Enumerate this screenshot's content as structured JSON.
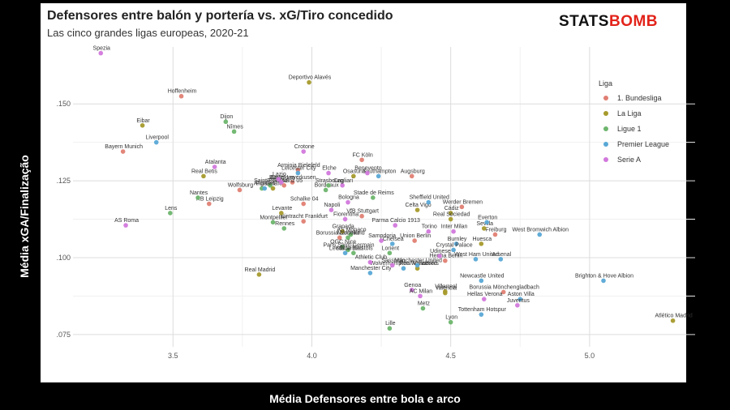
{
  "title": "Defensores entre balón y portería vs. xG/Tiro concedido",
  "subtitle": "Las cinco grandes ligas europeas, 2020-21",
  "logo": {
    "part1": "STATS",
    "part2": "BOMB"
  },
  "chart_data": {
    "type": "scatter",
    "xlabel": "Média Defensores entre bola e arco",
    "ylabel": "Média xGA/Finalização",
    "xlim": [
      3.14,
      5.38
    ],
    "ylim": [
      0.071,
      0.1685
    ],
    "xticks": [
      3.5,
      4.0,
      4.5,
      5.0
    ],
    "xtick_labels": [
      "3.5",
      "4.0",
      "4.5",
      "5.0"
    ],
    "yticks": [
      0.075,
      0.1,
      0.125,
      0.15
    ],
    "ytick_labels": [
      ".075",
      ".100",
      ".125",
      ".150"
    ],
    "grid": true,
    "legend": {
      "title": "Liga",
      "position": "right"
    },
    "series": [
      {
        "name": "1. Bundesliga",
        "color": "#e07f73",
        "points": [
          {
            "label": "Bayern Munich",
            "x": 3.32,
            "y": 0.1345
          },
          {
            "label": "Hoffenheim",
            "x": 3.53,
            "y": 0.1525
          },
          {
            "label": "Arminia Bielefeld",
            "x": 3.95,
            "y": 0.1285
          },
          {
            "label": "Wolfsburg",
            "x": 3.74,
            "y": 0.122
          },
          {
            "label": "RB Leipzig",
            "x": 3.63,
            "y": 0.1175
          },
          {
            "label": "Bayer Leverkusen",
            "x": 3.93,
            "y": 0.1245
          },
          {
            "label": "Schalke 04",
            "x": 3.97,
            "y": 0.1175
          },
          {
            "label": "FC Köln",
            "x": 4.18,
            "y": 0.1318
          },
          {
            "label": "Augsburg",
            "x": 4.36,
            "y": 0.1265
          },
          {
            "label": "VfB Stuttgart",
            "x": 4.18,
            "y": 0.1135
          },
          {
            "label": "Borussia Dortmund",
            "x": 4.1,
            "y": 0.1065
          },
          {
            "label": "Werder Bremen",
            "x": 4.54,
            "y": 0.1165
          },
          {
            "label": "Union Berlin",
            "x": 4.37,
            "y": 0.1055
          },
          {
            "label": "Freiburg",
            "x": 4.66,
            "y": 0.1075
          },
          {
            "label": "Hertha Berlin",
            "x": 4.48,
            "y": 0.099
          },
          {
            "label": "Borussia Mönchengladbach",
            "x": 4.69,
            "y": 0.0888
          },
          {
            "label": "Eintracht Frankfurt",
            "x": 3.97,
            "y": 0.1118
          },
          {
            "label": "FSV Mainz 05",
            "x": 3.9,
            "y": 0.1235
          }
        ]
      },
      {
        "name": "La Liga",
        "color": "#a69a2c",
        "points": [
          {
            "label": "Deportivo Alavés",
            "x": 3.99,
            "y": 0.157
          },
          {
            "label": "Eibar",
            "x": 3.39,
            "y": 0.143
          },
          {
            "label": "Real Betis",
            "x": 3.61,
            "y": 0.1265
          },
          {
            "label": "Osasuna",
            "x": 4.15,
            "y": 0.1265
          },
          {
            "label": "Levante",
            "x": 3.89,
            "y": 0.1145
          },
          {
            "label": "Celta Vigo",
            "x": 4.38,
            "y": 0.1155
          },
          {
            "label": "Cádiz",
            "x": 4.5,
            "y": 0.1145
          },
          {
            "label": "Real Sociedad",
            "x": 4.5,
            "y": 0.1125
          },
          {
            "label": "Granada",
            "x": 4.11,
            "y": 0.1085
          },
          {
            "label": "Huesca",
            "x": 4.61,
            "y": 0.1045
          },
          {
            "label": "Sevilla",
            "x": 4.62,
            "y": 0.1095
          },
          {
            "label": "Real Madrid",
            "x": 3.81,
            "y": 0.0945
          },
          {
            "label": "Villarreal",
            "x": 4.48,
            "y": 0.089
          },
          {
            "label": "Valencia",
            "x": 4.48,
            "y": 0.0885
          },
          {
            "label": "Atlético Madrid",
            "x": 5.3,
            "y": 0.0795
          },
          {
            "label": "Getafe",
            "x": 3.86,
            "y": 0.1225
          },
          {
            "label": "Real Valladolid",
            "x": 4.38,
            "y": 0.0965
          }
        ]
      },
      {
        "name": "Ligue 1",
        "color": "#6db56d",
        "points": [
          {
            "label": "Dijon",
            "x": 3.69,
            "y": 0.1442
          },
          {
            "label": "Nîmes",
            "x": 3.72,
            "y": 0.141
          },
          {
            "label": "Lens",
            "x": 3.49,
            "y": 0.1145
          },
          {
            "label": "Nantes",
            "x": 3.59,
            "y": 0.1195
          },
          {
            "label": "Angers",
            "x": 3.82,
            "y": 0.1225
          },
          {
            "label": "Saint-Étienne",
            "x": 3.85,
            "y": 0.1235
          },
          {
            "label": "Montpellier",
            "x": 3.86,
            "y": 0.1115
          },
          {
            "label": "Rennes",
            "x": 3.9,
            "y": 0.1095
          },
          {
            "label": "Bordeaux",
            "x": 4.05,
            "y": 0.122
          },
          {
            "label": "Strasbourg",
            "x": 4.06,
            "y": 0.1235
          },
          {
            "label": "Stade de Reims",
            "x": 4.22,
            "y": 0.1195
          },
          {
            "label": "AS Monaco",
            "x": 4.14,
            "y": 0.1075
          },
          {
            "label": "Marseille",
            "x": 4.13,
            "y": 0.1065
          },
          {
            "label": "OGC Nice",
            "x": 4.11,
            "y": 0.1035
          },
          {
            "label": "Paris Saint-Germain",
            "x": 4.13,
            "y": 0.1025
          },
          {
            "label": "Lorient",
            "x": 4.28,
            "y": 0.1015
          },
          {
            "label": "Stade Brestois",
            "x": 4.15,
            "y": 0.1015
          },
          {
            "label": "Lille",
            "x": 4.28,
            "y": 0.077
          },
          {
            "label": "Metz",
            "x": 4.4,
            "y": 0.0835
          },
          {
            "label": "Lyon",
            "x": 4.5,
            "y": 0.079
          }
        ]
      },
      {
        "name": "Premier League",
        "color": "#58a8d6",
        "points": [
          {
            "label": "Liverpool",
            "x": 3.44,
            "y": 0.1375
          },
          {
            "label": "Leicester City",
            "x": 3.95,
            "y": 0.1275
          },
          {
            "label": "Fulham",
            "x": 3.83,
            "y": 0.1225
          },
          {
            "label": "Southampton",
            "x": 4.24,
            "y": 0.1265
          },
          {
            "label": "Sheffield United",
            "x": 4.42,
            "y": 0.118
          },
          {
            "label": "Everton",
            "x": 4.63,
            "y": 0.1115
          },
          {
            "label": "West Bromwich Albion",
            "x": 4.82,
            "y": 0.1075
          },
          {
            "label": "Burnley",
            "x": 4.52,
            "y": 0.1045
          },
          {
            "label": "Crystal Palace",
            "x": 4.51,
            "y": 0.1025
          },
          {
            "label": "Chelsea",
            "x": 4.29,
            "y": 0.1045
          },
          {
            "label": "West Ham United",
            "x": 4.59,
            "y": 0.0995
          },
          {
            "label": "Arsenal",
            "x": 4.68,
            "y": 0.0995
          },
          {
            "label": "Leeds United",
            "x": 4.12,
            "y": 0.1015
          },
          {
            "label": "Manchester City",
            "x": 4.21,
            "y": 0.095
          },
          {
            "label": "Wolverhampton Wanderers",
            "x": 4.33,
            "y": 0.0965
          },
          {
            "label": "Newcastle United",
            "x": 4.61,
            "y": 0.0925
          },
          {
            "label": "Brighton & Hove Albion",
            "x": 5.05,
            "y": 0.0925
          },
          {
            "label": "Aston Villa",
            "x": 4.75,
            "y": 0.0865
          },
          {
            "label": "Tottenham Hotspur",
            "x": 4.61,
            "y": 0.0815
          },
          {
            "label": "Manchester United",
            "x": 4.38,
            "y": 0.0975
          }
        ]
      },
      {
        "name": "Serie A",
        "color": "#d278dc",
        "points": [
          {
            "label": "Spezia",
            "x": 3.24,
            "y": 0.1665
          },
          {
            "label": "Atalanta",
            "x": 3.65,
            "y": 0.1295
          },
          {
            "label": "Barcelona",
            "x": 3.89,
            "y": 0.1245
          },
          {
            "label": "Lazio",
            "x": 3.88,
            "y": 0.1255
          },
          {
            "label": "Crotone",
            "x": 3.97,
            "y": 0.1345
          },
          {
            "label": "Elche",
            "x": 4.06,
            "y": 0.1275
          },
          {
            "label": "Benevento",
            "x": 4.2,
            "y": 0.1275
          },
          {
            "label": "Cagliari",
            "x": 4.11,
            "y": 0.1235
          },
          {
            "label": "Bologna",
            "x": 4.13,
            "y": 0.118
          },
          {
            "label": "Napoli",
            "x": 4.07,
            "y": 0.1155
          },
          {
            "label": "Fiorentina",
            "x": 4.12,
            "y": 0.1125
          },
          {
            "label": "Parma Calcio 1913",
            "x": 4.3,
            "y": 0.1105
          },
          {
            "label": "Torino",
            "x": 4.42,
            "y": 0.1085
          },
          {
            "label": "Inter Milan",
            "x": 4.51,
            "y": 0.1085
          },
          {
            "label": "Sampdoria",
            "x": 4.25,
            "y": 0.1055
          },
          {
            "label": "Udinese",
            "x": 4.46,
            "y": 0.1005
          },
          {
            "label": "Athletic Club",
            "x": 4.21,
            "y": 0.0985
          },
          {
            "label": "Sassuolo",
            "x": 4.29,
            "y": 0.0975
          },
          {
            "label": "Genoa",
            "x": 4.36,
            "y": 0.0895
          },
          {
            "label": "AC Milan",
            "x": 4.39,
            "y": 0.0875
          },
          {
            "label": "Hellas Verona",
            "x": 4.62,
            "y": 0.0865
          },
          {
            "label": "Juventus",
            "x": 4.74,
            "y": 0.0845
          },
          {
            "label": "AS Roma",
            "x": 3.33,
            "y": 0.1105
          }
        ]
      }
    ]
  }
}
